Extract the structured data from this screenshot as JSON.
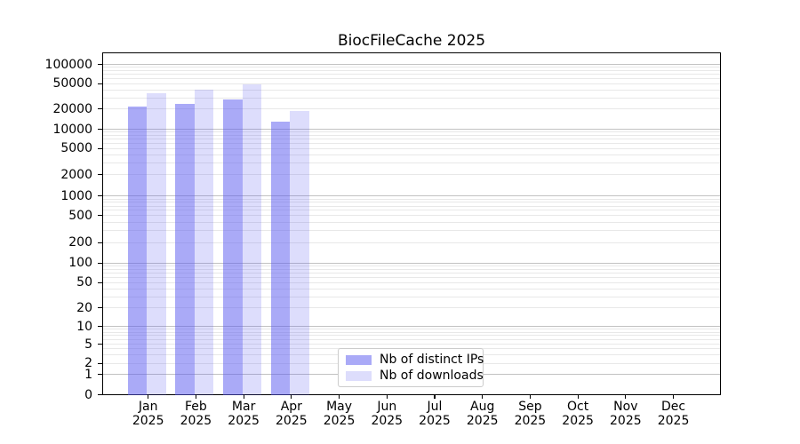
{
  "title": "BiocFileCache 2025",
  "chart_data": {
    "type": "bar",
    "title": "BiocFileCache 2025",
    "xlabel": "",
    "ylabel": "",
    "categories": [
      "Jan",
      "Feb",
      "Mar",
      "Apr",
      "May",
      "Jun",
      "Jul",
      "Aug",
      "Sep",
      "Oct",
      "Nov",
      "Dec"
    ],
    "category_year": "2025",
    "series": [
      {
        "name": "Nb of distinct IPs",
        "color": "rgba(85,85,240,0.5)",
        "values": [
          21800,
          23500,
          27600,
          12700,
          0,
          0,
          0,
          0,
          0,
          0,
          0,
          0
        ]
      },
      {
        "name": "Nb of downloads",
        "color": "rgba(85,85,240,0.2)",
        "values": [
          35400,
          39400,
          47700,
          18200,
          0,
          0,
          0,
          0,
          0,
          0,
          0,
          0
        ]
      }
    ],
    "yscale": "log-with-zero-baseline",
    "ylim": [
      0,
      100000
    ],
    "y_tick_values": [
      0,
      1,
      2,
      5,
      10,
      20,
      50,
      100,
      200,
      500,
      1000,
      2000,
      5000,
      10000,
      20000,
      50000,
      100000
    ],
    "y_tick_labels": [
      "0",
      "1",
      "2",
      "5",
      "10",
      "20",
      "50",
      "100",
      "200",
      "500",
      "1000",
      "2000",
      "5000",
      "10000",
      "20000",
      "50000",
      "100000"
    ],
    "grid": "horizontal, major and minor",
    "legend_position": "inside lower center",
    "colors": {
      "bar_distinct_ips": "rgba(85,85,240,0.5)",
      "bar_downloads": "rgba(85,85,240,0.2)",
      "major_grid": "#c2c2c2",
      "minor_grid": "#e8e8e8",
      "axis": "#000000"
    }
  }
}
